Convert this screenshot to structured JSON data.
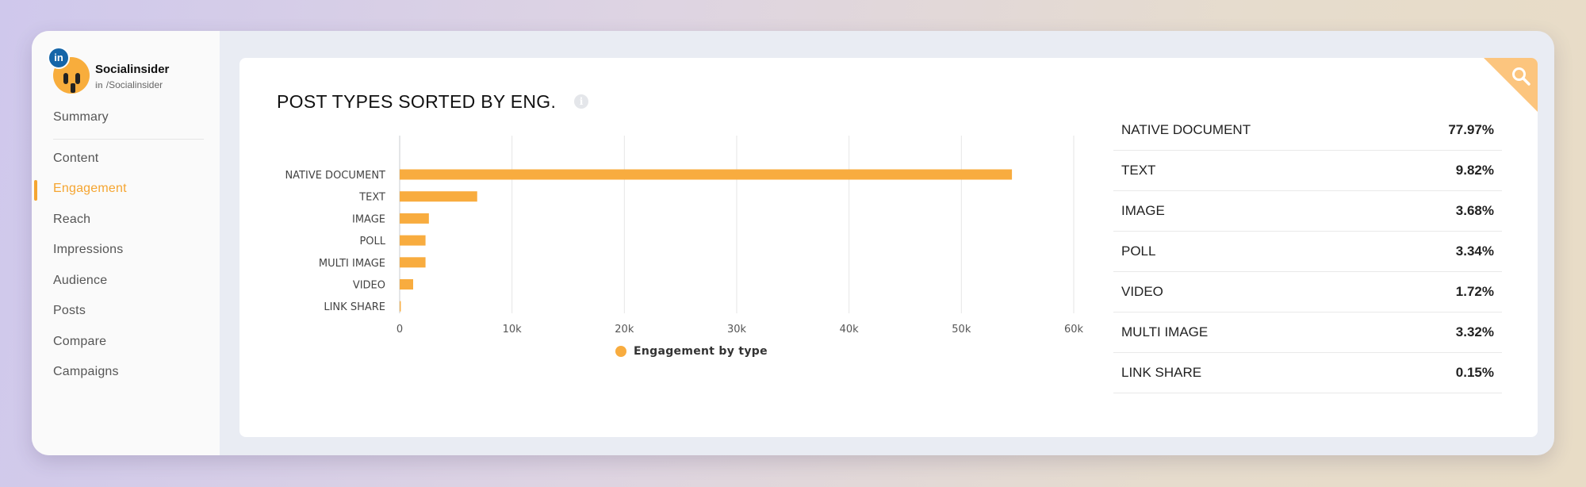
{
  "profile": {
    "name": "Socialinsider",
    "network_mark": "in",
    "handle": "/Socialinsider",
    "badge": "in"
  },
  "nav": [
    {
      "label": "Summary",
      "active": false
    },
    {
      "label": "Content",
      "active": false
    },
    {
      "label": "Engagement",
      "active": true
    },
    {
      "label": "Reach",
      "active": false
    },
    {
      "label": "Impressions",
      "active": false
    },
    {
      "label": "Audience",
      "active": false
    },
    {
      "label": "Posts",
      "active": false
    },
    {
      "label": "Compare",
      "active": false
    },
    {
      "label": "Campaigns",
      "active": false
    }
  ],
  "card": {
    "title": "POST TYPES SORTED BY ENG.",
    "info_icon": "info-icon",
    "corner_icon": "search-icon"
  },
  "chart_data": {
    "type": "bar",
    "orientation": "horizontal",
    "categories": [
      "NATIVE DOCUMENT",
      "TEXT",
      "IMAGE",
      "POLL",
      "MULTI IMAGE",
      "VIDEO",
      "LINK SHARE"
    ],
    "series": [
      {
        "name": "Engagement by type",
        "values": [
          54500,
          6900,
          2600,
          2300,
          2300,
          1200,
          100
        ]
      }
    ],
    "xlim": [
      0,
      60000
    ],
    "xticks": [
      "0",
      "10k",
      "20k",
      "30k",
      "40k",
      "50k",
      "60k"
    ],
    "grid": true,
    "legend": "bottom-center",
    "color": "#f8ac3f"
  },
  "breakdown": [
    {
      "name": "NATIVE DOCUMENT",
      "pct": "77.97%"
    },
    {
      "name": "TEXT",
      "pct": "9.82%"
    },
    {
      "name": "IMAGE",
      "pct": "3.68%"
    },
    {
      "name": "POLL",
      "pct": "3.34%"
    },
    {
      "name": "VIDEO",
      "pct": "1.72%"
    },
    {
      "name": "MULTI IMAGE",
      "pct": "3.32%"
    },
    {
      "name": "LINK SHARE",
      "pct": "0.15%"
    }
  ],
  "colors": {
    "accent": "#f5a531",
    "bar": "#f8ac3f",
    "corner": "#fcc57e",
    "linkedin": "#1565a8"
  }
}
